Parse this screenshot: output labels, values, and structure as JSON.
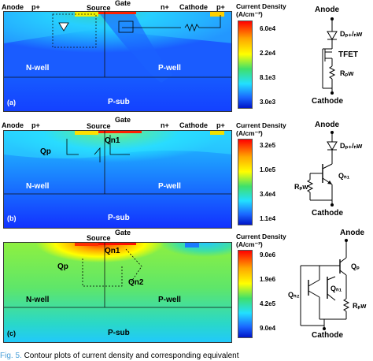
{
  "panels": [
    {
      "id": "a",
      "tag": "(a)",
      "labels": {
        "anode": "Anode",
        "p_left": "p+",
        "source": "Source",
        "gate": "Gate",
        "n_plus": "n+",
        "cathode": "Cathode",
        "p_right": "p+",
        "nwell": "N-well",
        "pwell": "P-well",
        "psub": "P-sub"
      },
      "colorbar": {
        "title": "Current Density",
        "unit": "(A/cm⁻²)",
        "ticks": [
          "6.0e4",
          "2.2e4",
          "8.1e3",
          "3.0e3"
        ]
      },
      "circuit": {
        "top": "Anode",
        "diode": "Dₚ₊/ₙw",
        "device": "TFET",
        "resistor": "Rₚw",
        "bottom": "Cathode"
      }
    },
    {
      "id": "b",
      "tag": "(b)",
      "labels": {
        "anode": "Anode",
        "p_left": "p+",
        "source": "Source",
        "gate": "Gate",
        "n_plus": "n+",
        "cathode": "Cathode",
        "p_right": "p+",
        "nwell": "N-well",
        "pwell": "P-well",
        "psub": "P-sub",
        "qp": "Qp",
        "qn1": "Qn1"
      },
      "colorbar": {
        "title": "Current Density",
        "unit": "(A/cm⁻²)",
        "ticks": [
          "3.2e5",
          "1.0e5",
          "3.4e4",
          "1.1e4"
        ]
      },
      "circuit": {
        "top": "Anode",
        "diode": "Dₚ₊/ₙw",
        "transistor": "Qₙ₁",
        "resistor": "Rₚw",
        "bottom": "Cathode"
      }
    },
    {
      "id": "c",
      "tag": "(c)",
      "labels": {
        "source": "Source",
        "gate": "Gate",
        "nwell": "N-well",
        "pwell": "P-well",
        "psub": "P-sub",
        "qp": "Qp",
        "qn1": "Qn1",
        "qn2": "Qn2"
      },
      "colorbar": {
        "title": "Current Density",
        "unit": "(A/cm⁻²)",
        "ticks": [
          "9.0e6",
          "1.9e6",
          "4.2e5",
          "9.0e4"
        ]
      },
      "circuit": {
        "top": "Anode",
        "qp": "Qₚ",
        "qn2": "Qₙ₂",
        "qn1": "Qₙ₁",
        "resistor": "Rₚw",
        "bottom": "Cathode"
      }
    }
  ],
  "caption": {
    "fig": "Fig. 5.",
    "text": "   Contour plots of current density and corresponding equivalent"
  },
  "colors": {
    "hot": "#ff2000",
    "mid": "#3fe06a",
    "cold": "#1a4cff",
    "caption_fig": "#4aa0d8"
  }
}
